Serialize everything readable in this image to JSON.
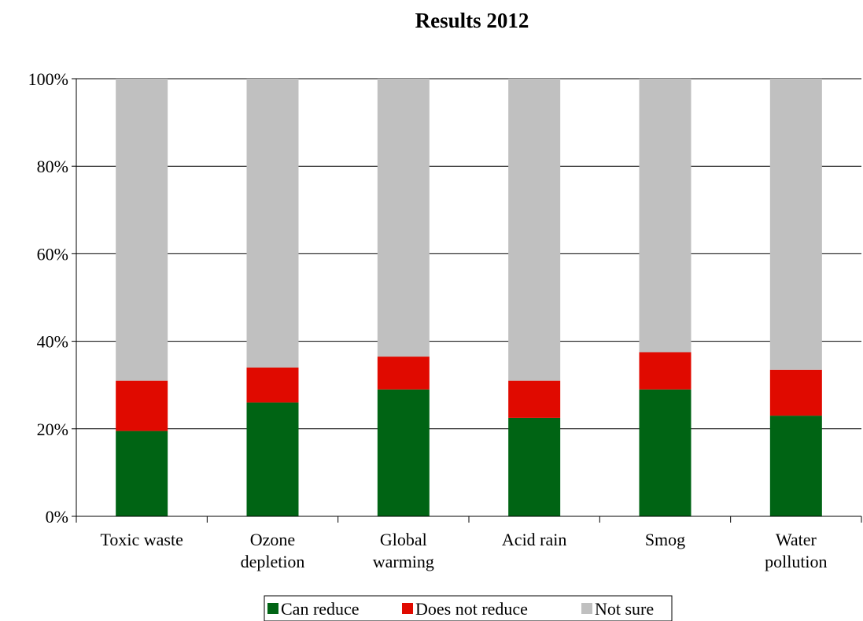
{
  "chart_data": {
    "type": "bar",
    "stacked": true,
    "title": "Results 2012",
    "xlabel": "",
    "ylabel": "",
    "ylim": [
      0,
      100
    ],
    "y_tick_labels": [
      "0%",
      "20%",
      "40%",
      "60%",
      "80%",
      "100%"
    ],
    "categories": [
      [
        "Toxic waste"
      ],
      [
        "Ozone",
        "depletion"
      ],
      [
        "Global",
        "warming"
      ],
      [
        "Acid rain"
      ],
      [
        "Smog"
      ],
      [
        "Water",
        "pollution"
      ]
    ],
    "series": [
      {
        "name": "Can reduce",
        "color": "#006414",
        "values": [
          19.5,
          26,
          29,
          22.5,
          29,
          23
        ]
      },
      {
        "name": "Does not reduce",
        "color": "#e00a00",
        "values": [
          11.5,
          8,
          7.5,
          8.5,
          8.5,
          10.5
        ]
      },
      {
        "name": "Not sure",
        "color": "#c0c0c0",
        "values": [
          69,
          66,
          63.5,
          69,
          62.5,
          66.5
        ]
      }
    ],
    "grid": true,
    "legend_position": "bottom"
  }
}
